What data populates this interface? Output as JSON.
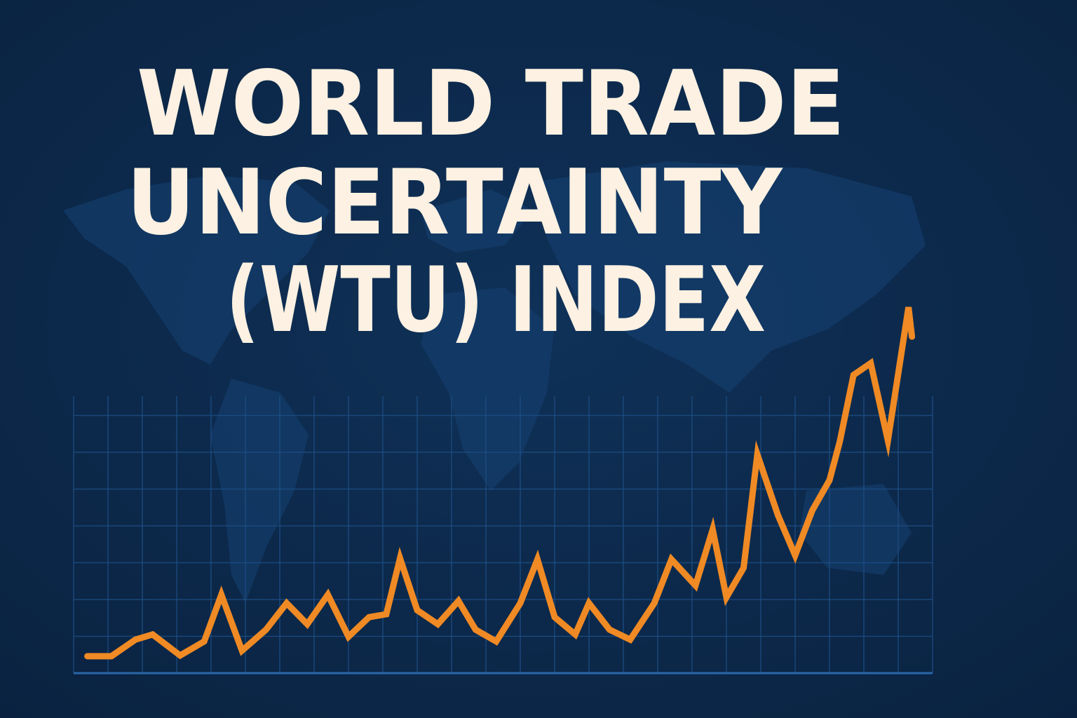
{
  "chart_data": {
    "type": "line",
    "title": [
      "WORLD TRADE",
      "UNCERTAINTY",
      "(WTU) INDEX"
    ],
    "x": [
      0.4,
      1.1,
      1.8,
      2.3,
      3.1,
      3.8,
      4.3,
      4.9,
      5.6,
      6.2,
      6.8,
      7.4,
      8.0,
      8.6,
      9.1,
      9.5,
      10.0,
      10.6,
      11.2,
      11.7,
      12.3,
      13.0,
      13.5,
      14.0,
      14.6,
      15.0,
      15.6,
      16.2,
      16.9,
      17.4,
      18.1,
      18.6,
      19.0,
      19.5,
      19.9,
      20.5,
      21.0,
      21.5,
      22.0,
      22.3,
      22.7,
      23.2,
      23.7,
      24.3,
      24.4
    ],
    "series": [
      {
        "color": "#f08a24",
        "values": [
          0.46,
          0.46,
          0.91,
          1.05,
          0.48,
          0.86,
          2.13,
          0.61,
          1.18,
          1.9,
          1.33,
          2.13,
          0.99,
          1.52,
          1.6,
          3.12,
          1.71,
          1.33,
          1.96,
          1.18,
          0.86,
          1.9,
          3.09,
          1.52,
          1.05,
          1.9,
          1.18,
          0.91,
          1.9,
          3.09,
          2.38,
          3.9,
          2.06,
          2.86,
          5.94,
          4.29,
          3.2,
          4.42,
          5.24,
          6.29,
          8.1,
          8.42,
          6.32,
          9.94,
          9.14
        ]
      }
    ],
    "xlim": [
      0,
      25
    ],
    "xticks": [
      0,
      1,
      2,
      3,
      4,
      5,
      6,
      7,
      8,
      9,
      10,
      11,
      12,
      13,
      14,
      15,
      16,
      17,
      18,
      19,
      20,
      21,
      22,
      23,
      24,
      25
    ],
    "ylim": [
      0,
      10.5
    ],
    "yticks": [
      0,
      1,
      2,
      3,
      4,
      5,
      6,
      7
    ],
    "grid": true
  }
}
